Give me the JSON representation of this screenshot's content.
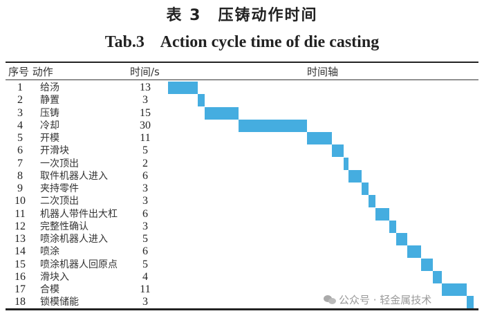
{
  "title_cn": "表 3　压铸动作时间",
  "title_en": "Tab.3    Action cycle time of die casting",
  "headers": {
    "no_action": "序号 动作",
    "time": "时间/s",
    "timeline": "时间轴"
  },
  "watermark": "公众号 · 轻金属技术",
  "chart_data": {
    "type": "bar",
    "subtype": "gantt",
    "title": "Tab.3 Action cycle time of die casting",
    "xlabel": "时间轴",
    "ylabel": "动作",
    "unit": "s",
    "bar_color": "#45ade0",
    "total": 134,
    "rows": [
      {
        "no": "1",
        "action": "给汤",
        "time": 13,
        "start": 0
      },
      {
        "no": "2",
        "action": "静置",
        "time": 3,
        "start": 13
      },
      {
        "no": "3",
        "action": "压铸",
        "time": 15,
        "start": 16
      },
      {
        "no": "4",
        "action": "冷却",
        "time": 30,
        "start": 31
      },
      {
        "no": "5",
        "action": "开模",
        "time": 11,
        "start": 61
      },
      {
        "no": "6",
        "action": "开滑块",
        "time": 5,
        "start": 72
      },
      {
        "no": "7",
        "action": "一次顶出",
        "time": 2,
        "start": 77
      },
      {
        "no": "8",
        "action": "取件机器人进入",
        "time": 6,
        "start": 79
      },
      {
        "no": "9",
        "action": "夹持零件",
        "time": 3,
        "start": 85
      },
      {
        "no": "10",
        "action": "二次顶出",
        "time": 3,
        "start": 88
      },
      {
        "no": "11",
        "action": "机器人带件出大杠",
        "time": 6,
        "start": 91
      },
      {
        "no": "12",
        "action": "完整性确认",
        "time": 3,
        "start": 97
      },
      {
        "no": "13",
        "action": "喷涂机器人进入",
        "time": 5,
        "start": 100
      },
      {
        "no": "14",
        "action": "喷涂",
        "time": 6,
        "start": 105
      },
      {
        "no": "15",
        "action": "喷涂机器人回原点",
        "time": 5,
        "start": 111
      },
      {
        "no": "16",
        "action": "滑块入",
        "time": 4,
        "start": 116
      },
      {
        "no": "17",
        "action": "合模",
        "time": 11,
        "start": 120
      },
      {
        "no": "18",
        "action": "锁模储能",
        "time": 3,
        "start": 131
      }
    ]
  }
}
